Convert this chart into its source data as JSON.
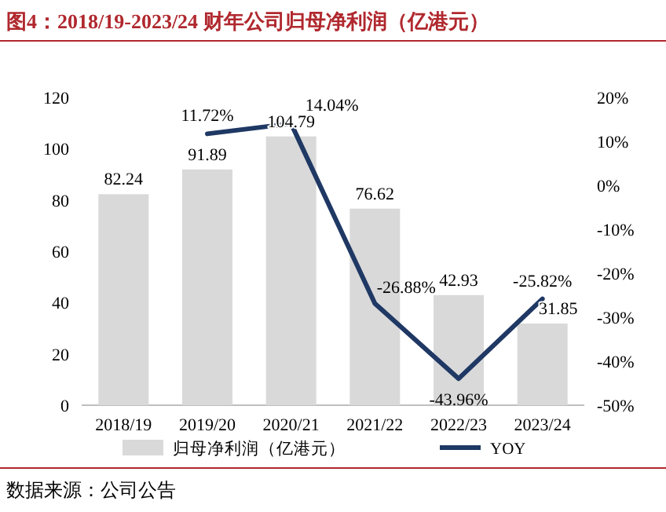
{
  "chart_data": {
    "type": "bar",
    "title": "图4：2018/19-2023/24 财年公司归母净利润（亿港元）",
    "categories": [
      "2018/19",
      "2019/20",
      "2020/21",
      "2021/22",
      "2022/23",
      "2023/24"
    ],
    "series": [
      {
        "name": "归母净利润（亿港元）",
        "color": "#d9d9d9",
        "values": [
          82.24,
          91.89,
          104.79,
          76.62,
          42.93,
          31.85
        ],
        "value_labels": [
          "82.24",
          "91.89",
          "104.79",
          "76.62",
          "42.93",
          "31.85"
        ]
      },
      {
        "name": "YOY",
        "type": "line",
        "axis": "y2",
        "color": "#1f3864",
        "values": [
          null,
          11.72,
          14.04,
          -26.88,
          -43.96,
          -25.82
        ],
        "value_labels": [
          null,
          "11.72%",
          "14.04%",
          "-26.88%",
          "-43.96%",
          "-25.82%"
        ]
      }
    ],
    "ylim": [
      0,
      120
    ],
    "yticks": [
      0,
      20,
      40,
      60,
      80,
      100,
      120
    ],
    "y2lim": [
      -50,
      20
    ],
    "y2ticks": [
      {
        "value": 20,
        "label": "20%"
      },
      {
        "value": 10,
        "label": "10%"
      },
      {
        "value": 0,
        "label": "0%"
      },
      {
        "value": -10,
        "label": "-10%"
      },
      {
        "value": -20,
        "label": "-20%"
      },
      {
        "value": -30,
        "label": "-30%"
      },
      {
        "value": -40,
        "label": "-40%"
      },
      {
        "value": -50,
        "label": "-50%"
      }
    ],
    "legend": "bottom",
    "annotations": [
      "数据来源：公司公告"
    ]
  }
}
